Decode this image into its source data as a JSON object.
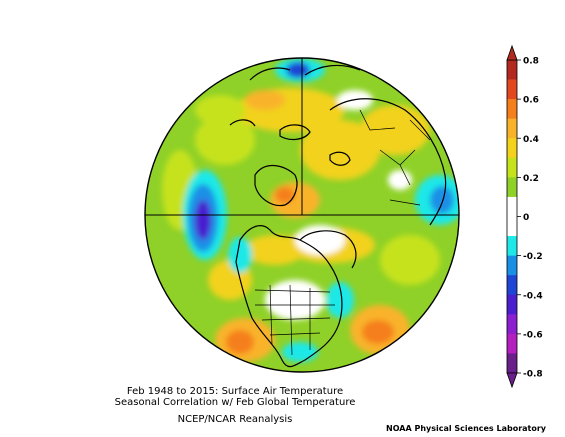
{
  "captions": {
    "line1": "Feb 1948 to 2015: Surface Air Temperature",
    "line2": "Seasonal Correlation w/ Feb Global Temperature",
    "line3": "NCEP/NCAR Reanalysis",
    "credit": "NOAA Physical Sciences Laboratory"
  },
  "colorbar": {
    "min": -0.8,
    "max": 0.8,
    "tick_labels": [
      "0.8",
      "0.6",
      "0.4",
      "0.2",
      "0",
      "-0.2",
      "-0.4",
      "-0.6",
      "-0.8"
    ],
    "colors": [
      {
        "range": "0.7..0.8",
        "color": "#b22a1f"
      },
      {
        "range": "0.6..0.7",
        "color": "#e3471d"
      },
      {
        "range": "0.5..0.6",
        "color": "#f57f1b"
      },
      {
        "range": "0.4..0.5",
        "color": "#f9b32a"
      },
      {
        "range": "0.3..0.4",
        "color": "#f2d21a"
      },
      {
        "range": "0.2..0.3",
        "color": "#c6e21a"
      },
      {
        "range": "0.1..0.2",
        "color": "#8fd128"
      },
      {
        "range": "0..0.1",
        "color": "#ffffff"
      },
      {
        "range": "-0.1..0",
        "color": "#ffffff"
      },
      {
        "range": "-0.2..-0.1",
        "color": "#1ee8e8"
      },
      {
        "range": "-0.3..-0.2",
        "color": "#1a8fe6"
      },
      {
        "range": "-0.4..-0.3",
        "color": "#1f45d4"
      },
      {
        "range": "-0.5..-0.4",
        "color": "#4a1fcf"
      },
      {
        "range": "-0.6..-0.5",
        "color": "#8c1fd0"
      },
      {
        "range": "-0.7..-0.6",
        "color": "#b41fbf"
      },
      {
        "range": "-0.8..-0.7",
        "color": "#6a1f8a"
      }
    ]
  },
  "map": {
    "projection": "north polar stereographic",
    "background_color": "#8fd128"
  }
}
